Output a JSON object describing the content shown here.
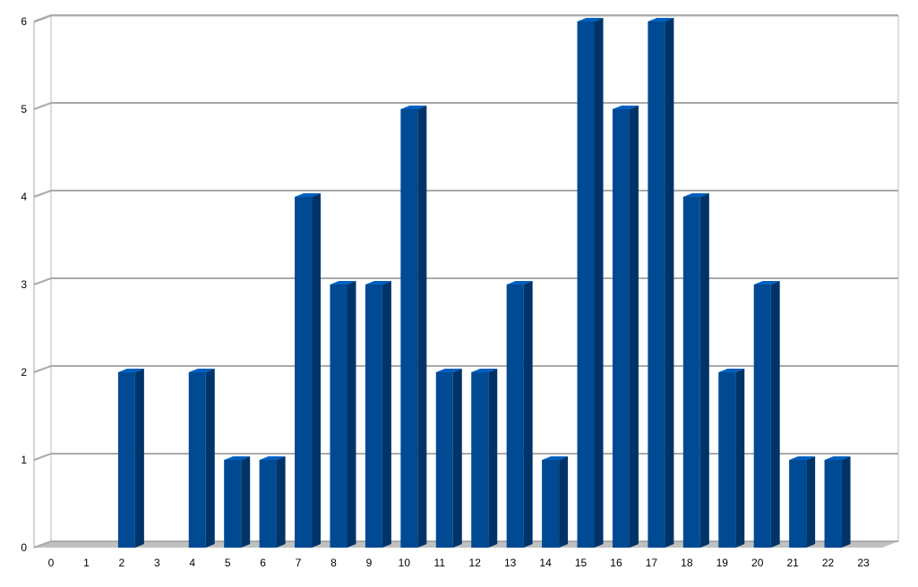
{
  "chart_data": {
    "type": "bar3d",
    "categories": [
      "0",
      "1",
      "2",
      "3",
      "4",
      "5",
      "6",
      "7",
      "8",
      "9",
      "10",
      "11",
      "12",
      "13",
      "14",
      "15",
      "16",
      "17",
      "18",
      "19",
      "20",
      "21",
      "22",
      "23"
    ],
    "values": [
      0,
      0,
      2,
      0,
      2,
      1,
      1,
      4,
      3,
      3,
      5,
      2,
      2,
      3,
      1,
      6,
      5,
      6,
      4,
      2,
      3,
      1,
      1,
      0
    ],
    "color": "#004a94",
    "ylim": [
      0,
      6
    ],
    "yticks": [
      0,
      1,
      2,
      3,
      4,
      5,
      6
    ],
    "grid": true
  }
}
